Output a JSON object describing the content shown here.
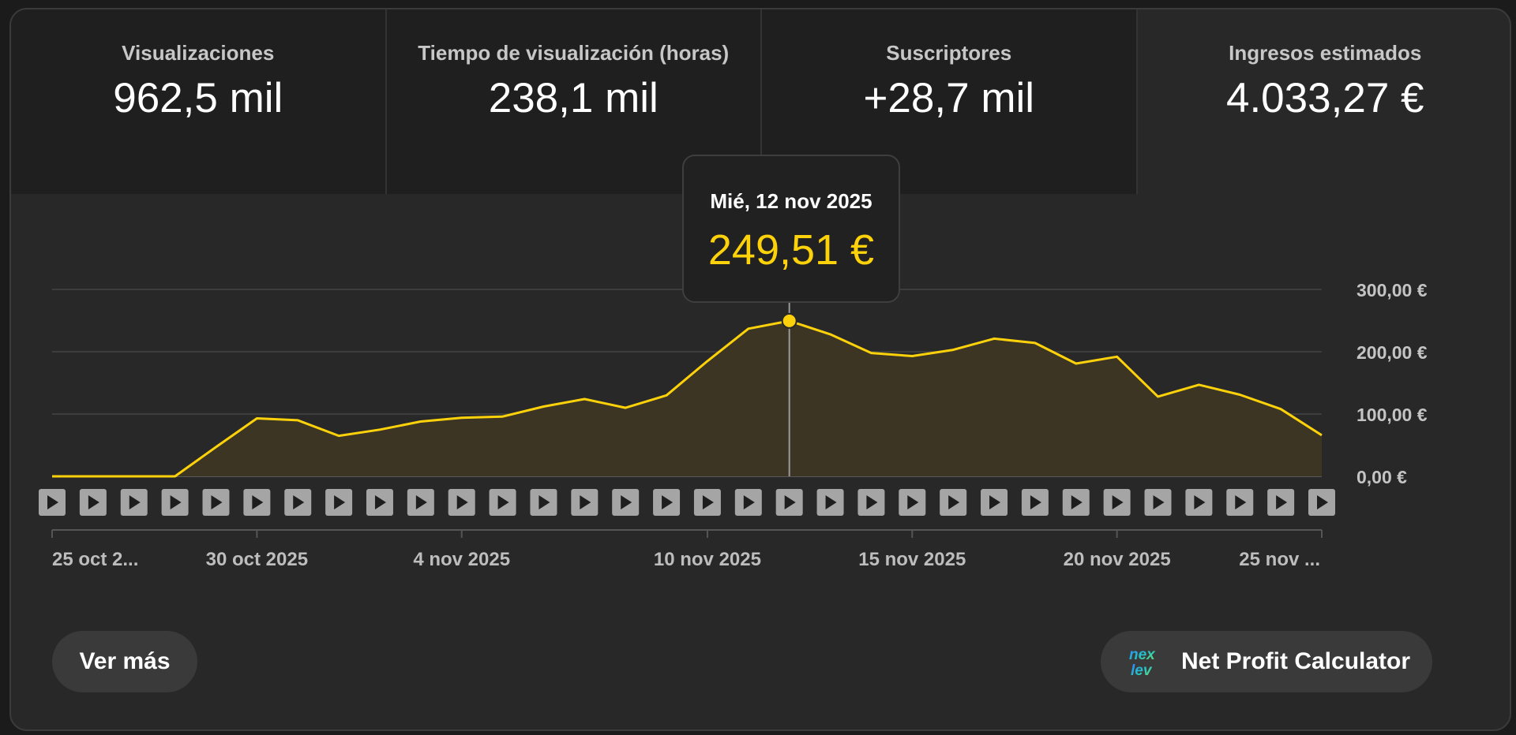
{
  "metrics": [
    {
      "label": "Visualizaciones",
      "value": "962,5 mil"
    },
    {
      "label": "Tiempo de visualización (horas)",
      "value": "238,1 mil"
    },
    {
      "label": "Suscriptores",
      "value": "+28,7 mil"
    },
    {
      "label": "Ingresos estimados",
      "value": "4.033,27 €"
    }
  ],
  "selected_metric_index": 3,
  "tooltip": {
    "date": "Mié, 12 nov 2025",
    "value": "249,51 €"
  },
  "buttons": {
    "more_label": "Ver más",
    "calculator_label": "Net Profit Calculator"
  },
  "icons": {
    "video_marker": "play-icon",
    "calculator": "nexlev-logo-icon"
  },
  "colors": {
    "line": "#fdd20b",
    "area": "#3c3524",
    "background": "#282828"
  },
  "chart_data": {
    "type": "area",
    "series": [
      {
        "values": [
          0,
          0,
          0,
          0,
          47,
          93,
          90,
          65,
          75,
          88,
          94,
          96,
          112,
          124,
          110,
          130,
          185,
          237,
          249.51,
          228,
          198,
          193,
          203,
          221,
          214,
          181,
          192,
          128,
          147,
          131,
          108,
          66
        ]
      }
    ],
    "x_dates": [
      "2025-10-25",
      "2025-10-26",
      "2025-10-27",
      "2025-10-28",
      "2025-10-29",
      "2025-10-30",
      "2025-10-31",
      "2025-11-01",
      "2025-11-02",
      "2025-11-03",
      "2025-11-04",
      "2025-11-05",
      "2025-11-06",
      "2025-11-07",
      "2025-11-08",
      "2025-11-09",
      "2025-11-10",
      "2025-11-11",
      "2025-11-12",
      "2025-11-13",
      "2025-11-14",
      "2025-11-15",
      "2025-11-16",
      "2025-11-17",
      "2025-11-18",
      "2025-11-19",
      "2025-11-20",
      "2025-11-21",
      "2025-11-22",
      "2025-11-23",
      "2025-11-24",
      "2025-11-25"
    ],
    "x_tick_labels": [
      {
        "date": "2025-10-25",
        "label": "25 oct 2..."
      },
      {
        "date": "2025-10-30",
        "label": "30 oct 2025"
      },
      {
        "date": "2025-11-04",
        "label": "4 nov 2025"
      },
      {
        "date": "2025-11-10",
        "label": "10 nov 2025"
      },
      {
        "date": "2025-11-15",
        "label": "15 nov 2025"
      },
      {
        "date": "2025-11-20",
        "label": "20 nov 2025"
      },
      {
        "date": "2025-11-25",
        "label": "25 nov ..."
      }
    ],
    "y_ticks": [
      {
        "value": 0,
        "label": "0,00 €"
      },
      {
        "value": 100,
        "label": "100,00 €"
      },
      {
        "value": 200,
        "label": "200,00 €"
      },
      {
        "value": 300,
        "label": "300,00 €"
      }
    ],
    "ylim": [
      0,
      300
    ],
    "highlight_date": "2025-11-12",
    "grid": true
  }
}
